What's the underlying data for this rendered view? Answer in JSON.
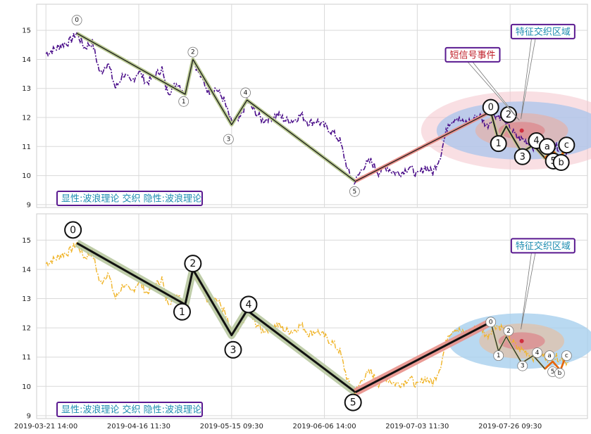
{
  "chart_data": [
    {
      "type": "line",
      "ylim": [
        8.9,
        15.9
      ],
      "yticks": [
        "9",
        "10",
        "11",
        "12",
        "13",
        "14",
        "15"
      ],
      "price_color": "#4b0f8a",
      "price_anchors": [
        [
          0,
          14.2
        ],
        [
          1.5,
          14.4
        ],
        [
          2,
          14.5
        ],
        [
          3,
          14.6
        ],
        [
          4,
          14.9
        ],
        [
          5,
          14.4
        ],
        [
          6,
          14.6
        ],
        [
          7,
          13.5
        ],
        [
          8,
          13.9
        ],
        [
          9,
          13.0
        ],
        [
          10,
          13.5
        ],
        [
          11,
          13.2
        ],
        [
          12,
          13.6
        ],
        [
          13,
          13.2
        ],
        [
          14,
          13.4
        ],
        [
          15,
          13.7
        ],
        [
          15.5,
          13.0
        ],
        [
          16,
          12.9
        ],
        [
          17,
          13.2
        ],
        [
          18,
          12.85
        ],
        [
          19,
          14.0
        ],
        [
          20,
          13.4
        ],
        [
          21,
          12.9
        ],
        [
          22,
          13.0
        ],
        [
          23,
          12.6
        ],
        [
          24,
          11.8
        ],
        [
          25,
          11.9
        ],
        [
          26,
          12.6
        ],
        [
          27,
          12.2
        ],
        [
          28,
          11.9
        ],
        [
          29,
          12.0
        ],
        [
          30,
          12.1
        ],
        [
          31,
          11.9
        ],
        [
          32,
          11.9
        ],
        [
          33,
          12.1
        ],
        [
          34,
          11.8
        ],
        [
          35,
          11.9
        ],
        [
          36,
          11.7
        ],
        [
          37,
          11.5
        ],
        [
          38,
          11.2
        ],
        [
          39,
          10.2
        ],
        [
          39.5,
          9.9
        ],
        [
          40,
          9.8
        ],
        [
          41,
          10.3
        ],
        [
          42,
          10.5
        ],
        [
          43,
          10.1
        ],
        [
          44,
          10.3
        ],
        [
          45,
          10.1
        ],
        [
          46,
          10.1
        ],
        [
          47,
          10.3
        ],
        [
          48,
          10.0
        ],
        [
          49,
          10.3
        ],
        [
          50,
          10.1
        ],
        [
          51,
          10.7
        ],
        [
          52,
          11.8
        ],
        [
          53,
          12.0
        ],
        [
          54,
          11.8
        ],
        [
          55,
          11.9
        ],
        [
          56,
          12.1
        ],
        [
          57,
          11.7
        ],
        [
          58,
          12.1
        ],
        [
          59,
          12.0
        ],
        [
          60,
          11.6
        ],
        [
          61,
          11.3
        ],
        [
          62,
          11.2
        ],
        [
          63,
          11.0
        ],
        [
          64,
          11.1
        ],
        [
          65,
          10.95
        ],
        [
          66,
          11.0
        ],
        [
          67,
          10.9
        ],
        [
          67.5,
          10.8
        ]
      ],
      "price_style": "dashdot",
      "thin_waves": [
        {
          "points": [
            [
              4,
              14.9
            ],
            [
              18,
              12.8
            ],
            [
              19,
              14.0
            ],
            [
              24,
              11.75
            ],
            [
              26,
              12.6
            ],
            [
              40,
              9.8
            ]
          ],
          "color": "#b8c890"
        },
        {
          "points": [
            [
              40,
              9.8
            ],
            [
              57.5,
              12.2
            ]
          ],
          "color": "#e8908a"
        }
      ],
      "thin_labels": [
        {
          "text": "0",
          "x": 4,
          "y": 15.35
        },
        {
          "text": "1",
          "x": 17.8,
          "y": 12.55
        },
        {
          "text": "2",
          "x": 19,
          "y": 14.25
        },
        {
          "text": "3",
          "x": 23.6,
          "y": 11.25
        },
        {
          "text": "4",
          "x": 25.8,
          "y": 12.85
        },
        {
          "text": "5",
          "x": 39.9,
          "y": 9.45
        }
      ],
      "recent_wave": [
        [
          57.5,
          12.2
        ],
        [
          58.5,
          11.2
        ],
        [
          59.5,
          11.7
        ],
        [
          61.5,
          10.8
        ],
        [
          63,
          11.05
        ],
        [
          64.5,
          10.6
        ],
        [
          65.5,
          10.85
        ],
        [
          66.5,
          10.55
        ],
        [
          67,
          10.9
        ]
      ],
      "recent_wave_color": "#e8630a",
      "recent_labels": [
        {
          "text": "0",
          "x": 57.5,
          "y": 12.35,
          "size": "big"
        },
        {
          "text": "1",
          "x": 58.5,
          "y": 11.1,
          "size": "big"
        },
        {
          "text": "2",
          "x": 59.8,
          "y": 12.1,
          "size": "big"
        },
        {
          "text": "3",
          "x": 61.6,
          "y": 10.65,
          "size": "big"
        },
        {
          "text": "4",
          "x": 63.4,
          "y": 11.2,
          "size": "big"
        },
        {
          "text": "a",
          "x": 64.8,
          "y": 11.0,
          "size": "big"
        },
        {
          "text": "5",
          "x": 65.6,
          "y": 10.5,
          "size": "big"
        },
        {
          "text": "b",
          "x": 66.6,
          "y": 10.45,
          "size": "big"
        },
        {
          "text": "c",
          "x": 67.3,
          "y": 11.05,
          "size": "big"
        }
      ],
      "zone_center": [
        61.5,
        11.55
      ],
      "zone_layers": [
        {
          "rx": 13,
          "ry": 1.35,
          "color": "#f4c4cc",
          "opacity": 0.55
        },
        {
          "rx": 11,
          "ry": 1.0,
          "color": "#a8c4ec",
          "opacity": 0.75
        },
        {
          "rx": 6,
          "ry": 0.6,
          "color": "#e6b0a8",
          "opacity": 0.7
        },
        {
          "rx": 3,
          "ry": 0.3,
          "color": "#dc8c90",
          "opacity": 0.8
        }
      ],
      "callouts": [
        {
          "text": "短信号事件",
          "color": "#c0202a",
          "border": "#5a1a90",
          "bx": 52.2,
          "by": 14.4,
          "tx": 61.2,
          "ty": 11.9
        },
        {
          "text": "特征交织区域",
          "color": "#1c8cb0",
          "border": "#5a1a90",
          "bx": 60.7,
          "by": 15.2,
          "tx": 61.4,
          "ty": 11.95
        }
      ],
      "caption": "显性:波浪理论 交织 隐性:波浪理论"
    },
    {
      "type": "line",
      "ylim": [
        8.9,
        15.9
      ],
      "yticks": [
        "9",
        "10",
        "11",
        "12",
        "13",
        "14",
        "15"
      ],
      "price_color": "#f0b428",
      "price_style": "dashdot",
      "thick_waves": [
        {
          "points": [
            [
              4,
              14.9
            ],
            [
              18,
              12.8
            ],
            [
              19,
              14.0
            ],
            [
              24,
              11.75
            ],
            [
              26,
              12.6
            ],
            [
              40,
              9.8
            ]
          ],
          "color": "#b8c8a0"
        },
        {
          "points": [
            [
              40,
              9.8
            ],
            [
              57.5,
              12.2
            ]
          ],
          "color": "#e8908a"
        }
      ],
      "big_labels": [
        {
          "text": "0",
          "x": 3.5,
          "y": 15.35
        },
        {
          "text": "1",
          "x": 17.6,
          "y": 12.55
        },
        {
          "text": "2",
          "x": 19,
          "y": 14.2
        },
        {
          "text": "3",
          "x": 24.2,
          "y": 11.25
        },
        {
          "text": "4",
          "x": 26.2,
          "y": 12.8
        },
        {
          "text": "5",
          "x": 39.7,
          "y": 9.45
        }
      ],
      "recent_wave": [
        [
          57.5,
          12.2
        ],
        [
          58.5,
          11.2
        ],
        [
          59.5,
          11.7
        ],
        [
          61.5,
          10.8
        ],
        [
          63,
          11.05
        ],
        [
          64.5,
          10.6
        ],
        [
          65.5,
          10.85
        ],
        [
          66.5,
          10.55
        ],
        [
          67,
          10.9
        ]
      ],
      "recent_wave_color": "#e8630a",
      "recent_labels": [
        {
          "text": "0",
          "x": 57.5,
          "y": 12.2,
          "size": "small"
        },
        {
          "text": "1",
          "x": 58.5,
          "y": 11.05,
          "size": "small"
        },
        {
          "text": "2",
          "x": 59.8,
          "y": 11.9,
          "size": "small"
        },
        {
          "text": "3",
          "x": 61.6,
          "y": 10.7,
          "size": "small"
        },
        {
          "text": "4",
          "x": 63.5,
          "y": 11.15,
          "size": "small"
        },
        {
          "text": "a",
          "x": 65.1,
          "y": 11.05,
          "size": "small"
        },
        {
          "text": "5",
          "x": 65.5,
          "y": 10.5,
          "size": "small"
        },
        {
          "text": "b",
          "x": 66.4,
          "y": 10.45,
          "size": "small"
        },
        {
          "text": "c",
          "x": 67.3,
          "y": 11.05,
          "size": "small"
        }
      ],
      "zone_center": [
        61.5,
        11.55
      ],
      "zone_layers": [
        {
          "rx": 9.5,
          "ry": 0.95,
          "color": "#a8d0ee",
          "opacity": 0.8
        },
        {
          "rx": 5.5,
          "ry": 0.6,
          "color": "#e2c0a8",
          "opacity": 0.75
        },
        {
          "rx": 3,
          "ry": 0.3,
          "color": "#dc8c90",
          "opacity": 0.8
        }
      ],
      "callouts": [
        {
          "text": "特征交织区域",
          "color": "#1c8cb0",
          "border": "#5a1a90",
          "bx": 60.7,
          "by": 15.05,
          "tx": 61.4,
          "ty": 11.95
        }
      ],
      "caption": "显性:波浪理论 交织 隐性:波浪理论"
    }
  ],
  "x_axis": {
    "range": [
      -1.2,
      70
    ],
    "ticks": [
      {
        "label": "2019-03-21 14:00",
        "x": 0
      },
      {
        "label": "2019-04-16 11:30",
        "x": 12
      },
      {
        "label": "2019-05-15 09:30",
        "x": 24
      },
      {
        "label": "2019-06-06 14:00",
        "x": 36
      },
      {
        "label": "2019-07-03 11:30",
        "x": 48
      },
      {
        "label": "2019-07-26 09:30",
        "x": 60
      }
    ]
  }
}
